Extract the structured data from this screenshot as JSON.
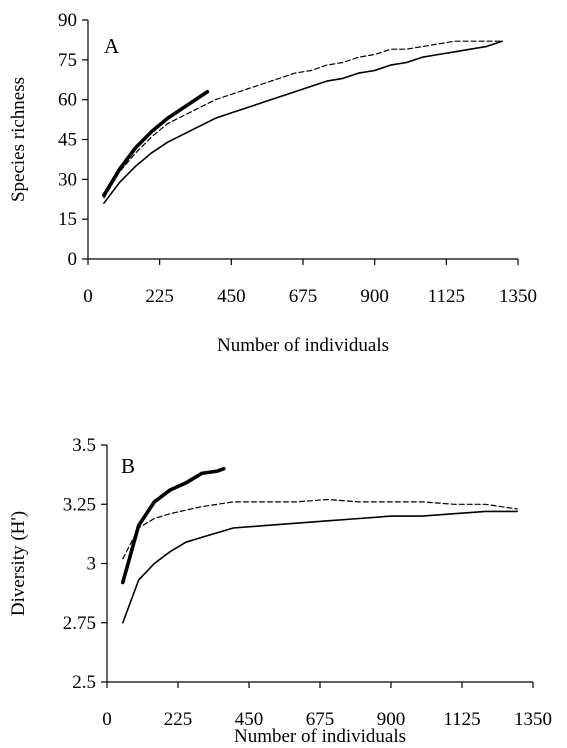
{
  "chart_data": [
    {
      "panel_label": "A",
      "type": "line",
      "xlabel": "Number of individuals",
      "ylabel": "Species richness",
      "xlim": [
        0,
        1350
      ],
      "ylim": [
        0,
        90
      ],
      "xticks": [
        "0",
        "225",
        "450",
        "675",
        "900",
        "1125",
        "1350"
      ],
      "yticks": [
        "0",
        "15",
        "30",
        "45",
        "60",
        "75",
        "90"
      ],
      "grid": false,
      "legend": "none",
      "series": [
        {
          "style": "thick-solid",
          "x": [
            50,
            100,
            150,
            200,
            250,
            300,
            350,
            375
          ],
          "y": [
            24,
            34,
            42,
            48,
            53,
            57,
            61,
            63
          ]
        },
        {
          "style": "dashed",
          "x": [
            50,
            100,
            150,
            200,
            250,
            300,
            350,
            400,
            450,
            500,
            550,
            600,
            650,
            700,
            750,
            800,
            850,
            900,
            950,
            1000,
            1050,
            1100,
            1150,
            1200,
            1250,
            1300
          ],
          "y": [
            23,
            33,
            40,
            46,
            51,
            54,
            57,
            60,
            62,
            64,
            66,
            68,
            70,
            71,
            73,
            74,
            76,
            77,
            79,
            79,
            80,
            81,
            82,
            82,
            82,
            82
          ]
        },
        {
          "style": "thin-solid",
          "x": [
            50,
            100,
            150,
            200,
            250,
            300,
            350,
            400,
            450,
            500,
            550,
            600,
            650,
            700,
            750,
            800,
            850,
            900,
            950,
            1000,
            1050,
            1100,
            1150,
            1200,
            1250,
            1300
          ],
          "y": [
            21,
            29,
            35,
            40,
            44,
            47,
            50,
            53,
            55,
            57,
            59,
            61,
            63,
            65,
            67,
            68,
            70,
            71,
            73,
            74,
            76,
            77,
            78,
            79,
            80,
            82
          ]
        }
      ]
    },
    {
      "panel_label": "B",
      "type": "line",
      "xlabel": "Number of individuals",
      "ylabel": "Diversity (H')",
      "xlim": [
        0,
        1350
      ],
      "ylim": [
        2.5,
        3.5
      ],
      "xticks": [
        "0",
        "225",
        "450",
        "675",
        "900",
        "1125",
        "1350"
      ],
      "yticks": [
        "2.5",
        "2.75",
        "3",
        "3.25",
        "3.5"
      ],
      "grid": false,
      "legend": "none",
      "series": [
        {
          "style": "thick-solid",
          "x": [
            50,
            100,
            150,
            200,
            250,
            300,
            350,
            370
          ],
          "y": [
            2.92,
            3.16,
            3.26,
            3.31,
            3.34,
            3.38,
            3.39,
            3.4
          ]
        },
        {
          "style": "dashed",
          "x": [
            50,
            100,
            150,
            200,
            300,
            400,
            500,
            600,
            700,
            800,
            900,
            1000,
            1100,
            1200,
            1300
          ],
          "y": [
            3.02,
            3.15,
            3.19,
            3.21,
            3.24,
            3.26,
            3.26,
            3.26,
            3.27,
            3.26,
            3.26,
            3.26,
            3.25,
            3.25,
            3.23
          ]
        },
        {
          "style": "thin-solid",
          "x": [
            50,
            100,
            150,
            200,
            250,
            300,
            400,
            500,
            600,
            700,
            800,
            900,
            1000,
            1100,
            1200,
            1300
          ],
          "y": [
            2.75,
            2.93,
            3.0,
            3.05,
            3.09,
            3.11,
            3.15,
            3.16,
            3.17,
            3.18,
            3.19,
            3.2,
            3.2,
            3.21,
            3.22,
            3.22
          ]
        }
      ]
    }
  ]
}
